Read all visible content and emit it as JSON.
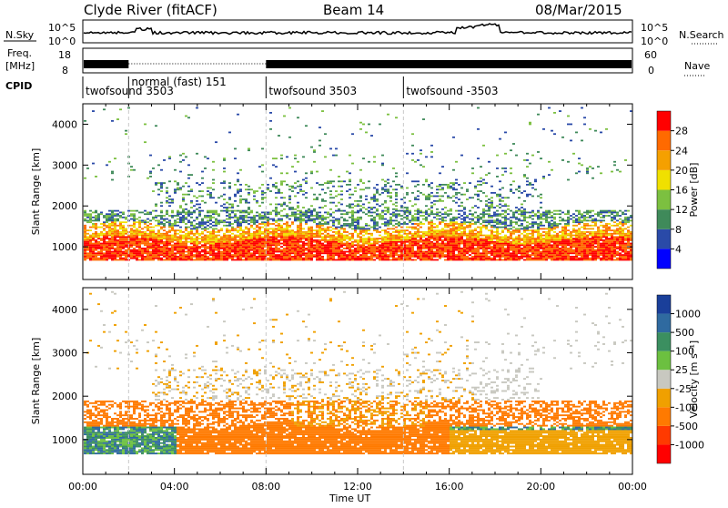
{
  "header": {
    "station": "Clyde River (fitACF)",
    "beam": "Beam 14",
    "date": "08/Mar/2015"
  },
  "strip_panels": {
    "nsky_label": "N.Sky",
    "nsky_ticks": [
      "10^5",
      "10^0"
    ],
    "nsearch_label": "N.Search",
    "nsearch_ticks": [
      "10^5",
      "10^0"
    ],
    "freq_label_line1": "Freq.",
    "freq_label_line2": "[MHz]",
    "freq_ticks": [
      "18",
      "8"
    ],
    "nave_label": "Nave",
    "nave_ticks": [
      "60",
      "0"
    ],
    "cpid_label": "CPID",
    "cpid_segments": [
      {
        "label": "twofsound 3503",
        "start_hour": 0
      },
      {
        "label": "normal (fast) 151",
        "start_hour": 2
      },
      {
        "label": "twofsound 3503",
        "start_hour": 8
      },
      {
        "label": "twofsound -3503",
        "start_hour": 14
      }
    ]
  },
  "chart_data": [
    {
      "type": "heatmap",
      "panel": "power",
      "ylabel": "Slant Range [km]",
      "xlabel": "",
      "ylim": [
        200,
        4500
      ],
      "y_ticks": [
        1000,
        2000,
        3000,
        4000
      ],
      "xlim": [
        0,
        24
      ],
      "colorbar_label": "Power [dB]",
      "colorbar_ticks": [
        "4",
        "8",
        "12",
        "16",
        "20",
        "24",
        "28"
      ],
      "colorbar_colors": [
        "#0000ff",
        "#2a4aa8",
        "#3f8a5a",
        "#7cc040",
        "#f0e000",
        "#f5a000",
        "#ff6a00",
        "#ff0000"
      ],
      "description_bands": [
        {
          "hours": [
            0,
            24
          ],
          "range_km": [
            650,
            1350
          ],
          "value_db": 26
        },
        {
          "hours": [
            0,
            24
          ],
          "range_km": [
            1350,
            1900
          ],
          "value_db": 12
        },
        {
          "hours": [
            4,
            19
          ],
          "range_km": [
            1900,
            2800
          ],
          "value_db": 16
        }
      ]
    },
    {
      "type": "heatmap",
      "panel": "velocity",
      "ylabel": "Slant Range [km]",
      "xlabel": "Time UT",
      "ylim": [
        200,
        4500
      ],
      "y_ticks": [
        1000,
        2000,
        3000,
        4000
      ],
      "xlim": [
        0,
        24
      ],
      "x_ticks": [
        "00:00",
        "04:00",
        "08:00",
        "12:00",
        "16:00",
        "20:00",
        "00:00"
      ],
      "colorbar_label": "Velocity [m s⁻¹]",
      "colorbar_ticks": [
        "1000",
        "500",
        "100",
        "25",
        "-25",
        "-100",
        "-500",
        "-1000"
      ],
      "colorbar_colors": [
        "#1a3f9a",
        "#2f6aa0",
        "#3b8f60",
        "#6cc040",
        "#c8c8c0",
        "#f0a000",
        "#ff7a00",
        "#ff3a00",
        "#ff0000"
      ]
    }
  ]
}
